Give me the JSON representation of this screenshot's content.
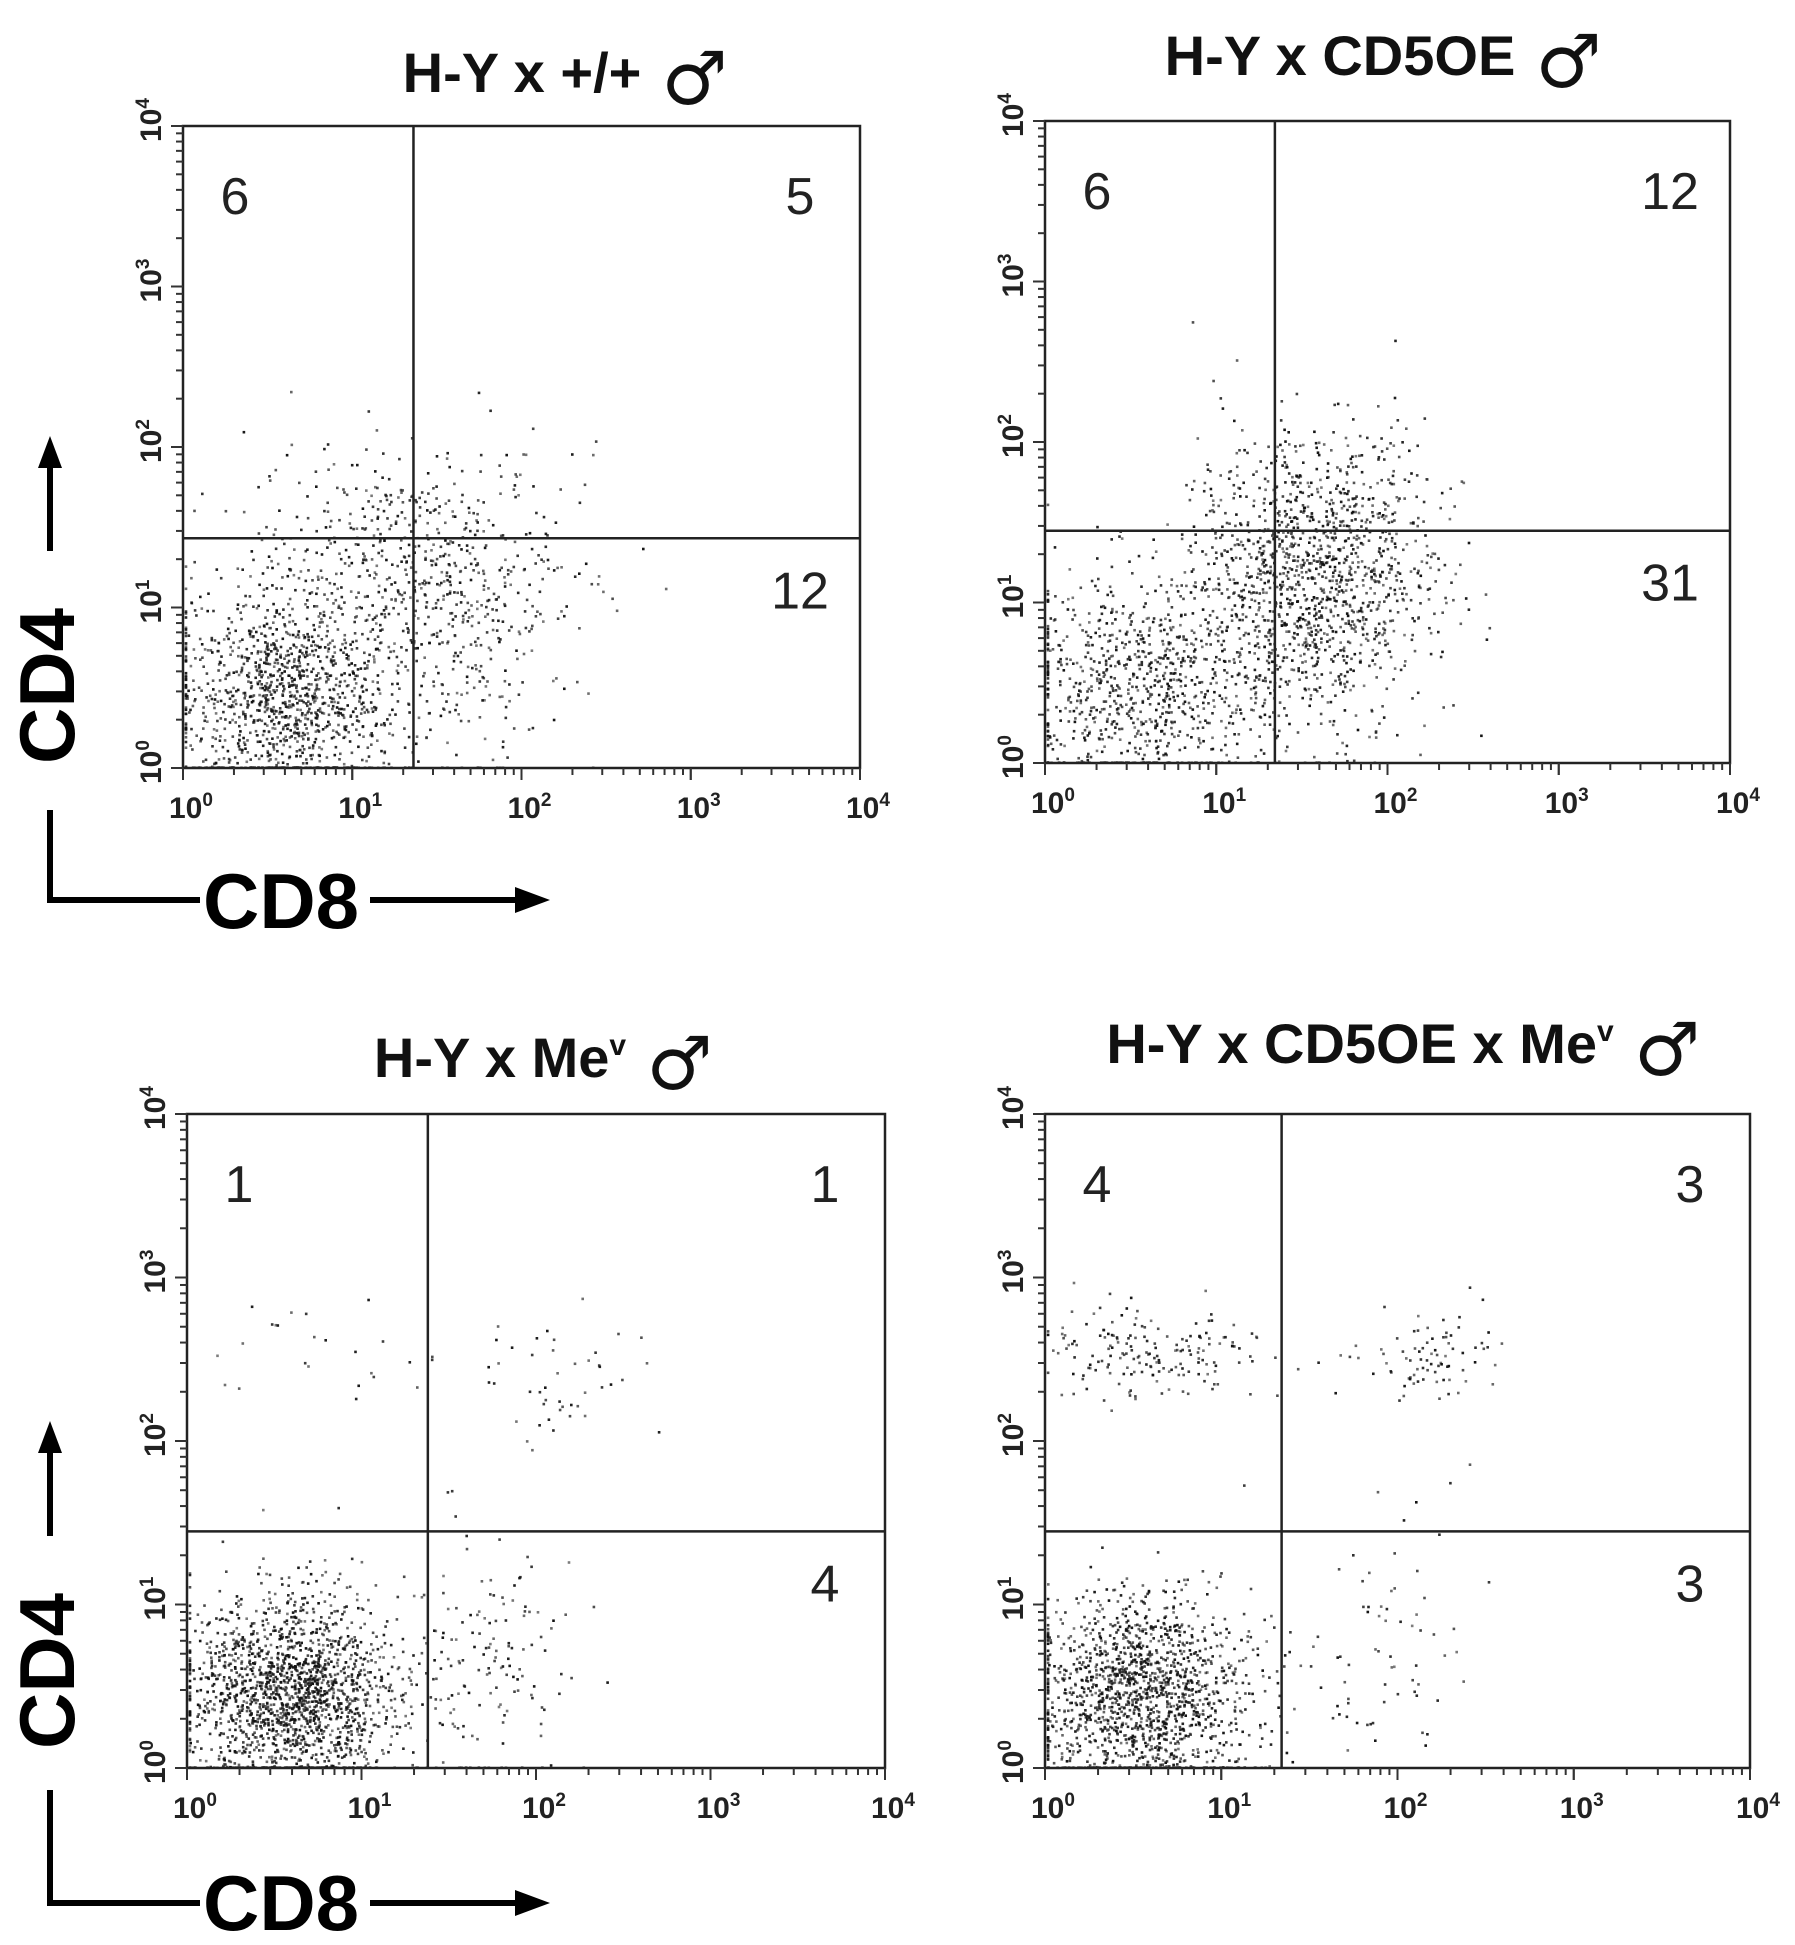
{
  "male_symbol": "♂",
  "axis_labels": {
    "x": "CD8",
    "y": "CD4"
  },
  "chart_data": [
    {
      "type": "scatter",
      "title": "H-Y x  +/+",
      "title_sup": "",
      "xlabel": "CD8",
      "ylabel": "CD4",
      "xlim_log10": [
        0,
        4
      ],
      "ylim_log10": [
        0,
        4
      ],
      "tick_base": "10",
      "tick_exponents": [
        "0",
        "1",
        "2",
        "3",
        "4"
      ],
      "gate": {
        "x": 23,
        "y": 27
      },
      "quadrants": {
        "upper_left": "6",
        "upper_right": "5",
        "lower_right": "12"
      },
      "populations_log10": [
        {
          "cx": 0.6,
          "cy": 0.45,
          "sx": 0.35,
          "sy": 0.33,
          "n": 1200
        },
        {
          "cx": 1.3,
          "cy": 1.35,
          "sx": 0.45,
          "sy": 0.35,
          "n": 450
        },
        {
          "cx": 1.7,
          "cy": 0.8,
          "sx": 0.3,
          "sy": 0.4,
          "n": 250
        }
      ]
    },
    {
      "type": "scatter",
      "title": "H-Y x CD5OE",
      "title_sup": "",
      "xlabel": "CD8",
      "ylabel": "CD4",
      "xlim_log10": [
        0,
        4
      ],
      "ylim_log10": [
        0,
        4
      ],
      "tick_base": "10",
      "tick_exponents": [
        "0",
        "1",
        "2",
        "3",
        "4"
      ],
      "gate": {
        "x": 22,
        "y": 28
      },
      "quadrants": {
        "upper_left": "6",
        "upper_right": "12",
        "lower_right": "31"
      },
      "populations_log10": [
        {
          "cx": 0.55,
          "cy": 0.5,
          "sx": 0.35,
          "sy": 0.35,
          "n": 800
        },
        {
          "cx": 1.55,
          "cy": 1.15,
          "sx": 0.35,
          "sy": 0.45,
          "n": 1400
        }
      ]
    },
    {
      "type": "scatter",
      "title": "H-Y x  Me",
      "title_sup": "v",
      "xlabel": "CD8",
      "ylabel": "CD4",
      "xlim_log10": [
        0,
        4
      ],
      "ylim_log10": [
        0,
        4
      ],
      "tick_base": "10",
      "tick_exponents": [
        "0",
        "1",
        "2",
        "3",
        "4"
      ],
      "gate": {
        "x": 24,
        "y": 28
      },
      "quadrants": {
        "upper_left": "1",
        "upper_right": "1",
        "lower_right": "4"
      },
      "populations_log10": [
        {
          "cx": 0.6,
          "cy": 0.45,
          "sx": 0.3,
          "sy": 0.3,
          "n": 1800
        },
        {
          "cx": 1.7,
          "cy": 0.7,
          "sx": 0.25,
          "sy": 0.4,
          "n": 150
        },
        {
          "cx": 2.1,
          "cy": 2.4,
          "sx": 0.25,
          "sy": 0.2,
          "n": 45
        },
        {
          "cx": 0.8,
          "cy": 2.5,
          "sx": 0.35,
          "sy": 0.2,
          "n": 25
        }
      ]
    },
    {
      "type": "scatter",
      "title": "H-Y x CD5OE x Me",
      "title_sup": "v",
      "xlabel": "CD8",
      "ylabel": "CD4",
      "xlim_log10": [
        0,
        4
      ],
      "ylim_log10": [
        0,
        4
      ],
      "tick_base": "10",
      "tick_exponents": [
        "0",
        "1",
        "2",
        "3",
        "4"
      ],
      "gate": {
        "x": 22,
        "y": 28
      },
      "quadrants": {
        "upper_left": "4",
        "upper_right": "3",
        "lower_right": "3"
      },
      "populations_log10": [
        {
          "cx": 0.55,
          "cy": 0.45,
          "sx": 0.3,
          "sy": 0.3,
          "n": 1500
        },
        {
          "cx": 0.55,
          "cy": 2.55,
          "sx": 0.35,
          "sy": 0.15,
          "n": 180
        },
        {
          "cx": 2.2,
          "cy": 2.5,
          "sx": 0.2,
          "sy": 0.15,
          "n": 80
        },
        {
          "cx": 1.9,
          "cy": 0.7,
          "sx": 0.25,
          "sy": 0.4,
          "n": 70
        }
      ]
    }
  ]
}
